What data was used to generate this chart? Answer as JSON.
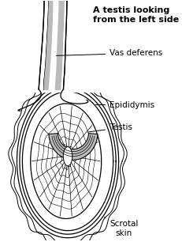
{
  "title": "A testis looking\nfrom the left side",
  "title_fontsize": 8.0,
  "bg_color": "#ffffff",
  "line_color": "#000000",
  "gray_color": "#bbbbbb",
  "label_fontsize": 7.5,
  "labels": {
    "vas_deferens": "Vas deferens",
    "epididymis": "Epididymis",
    "testis": "Testis",
    "scrotal_skin": "Scrotal\nskin"
  }
}
